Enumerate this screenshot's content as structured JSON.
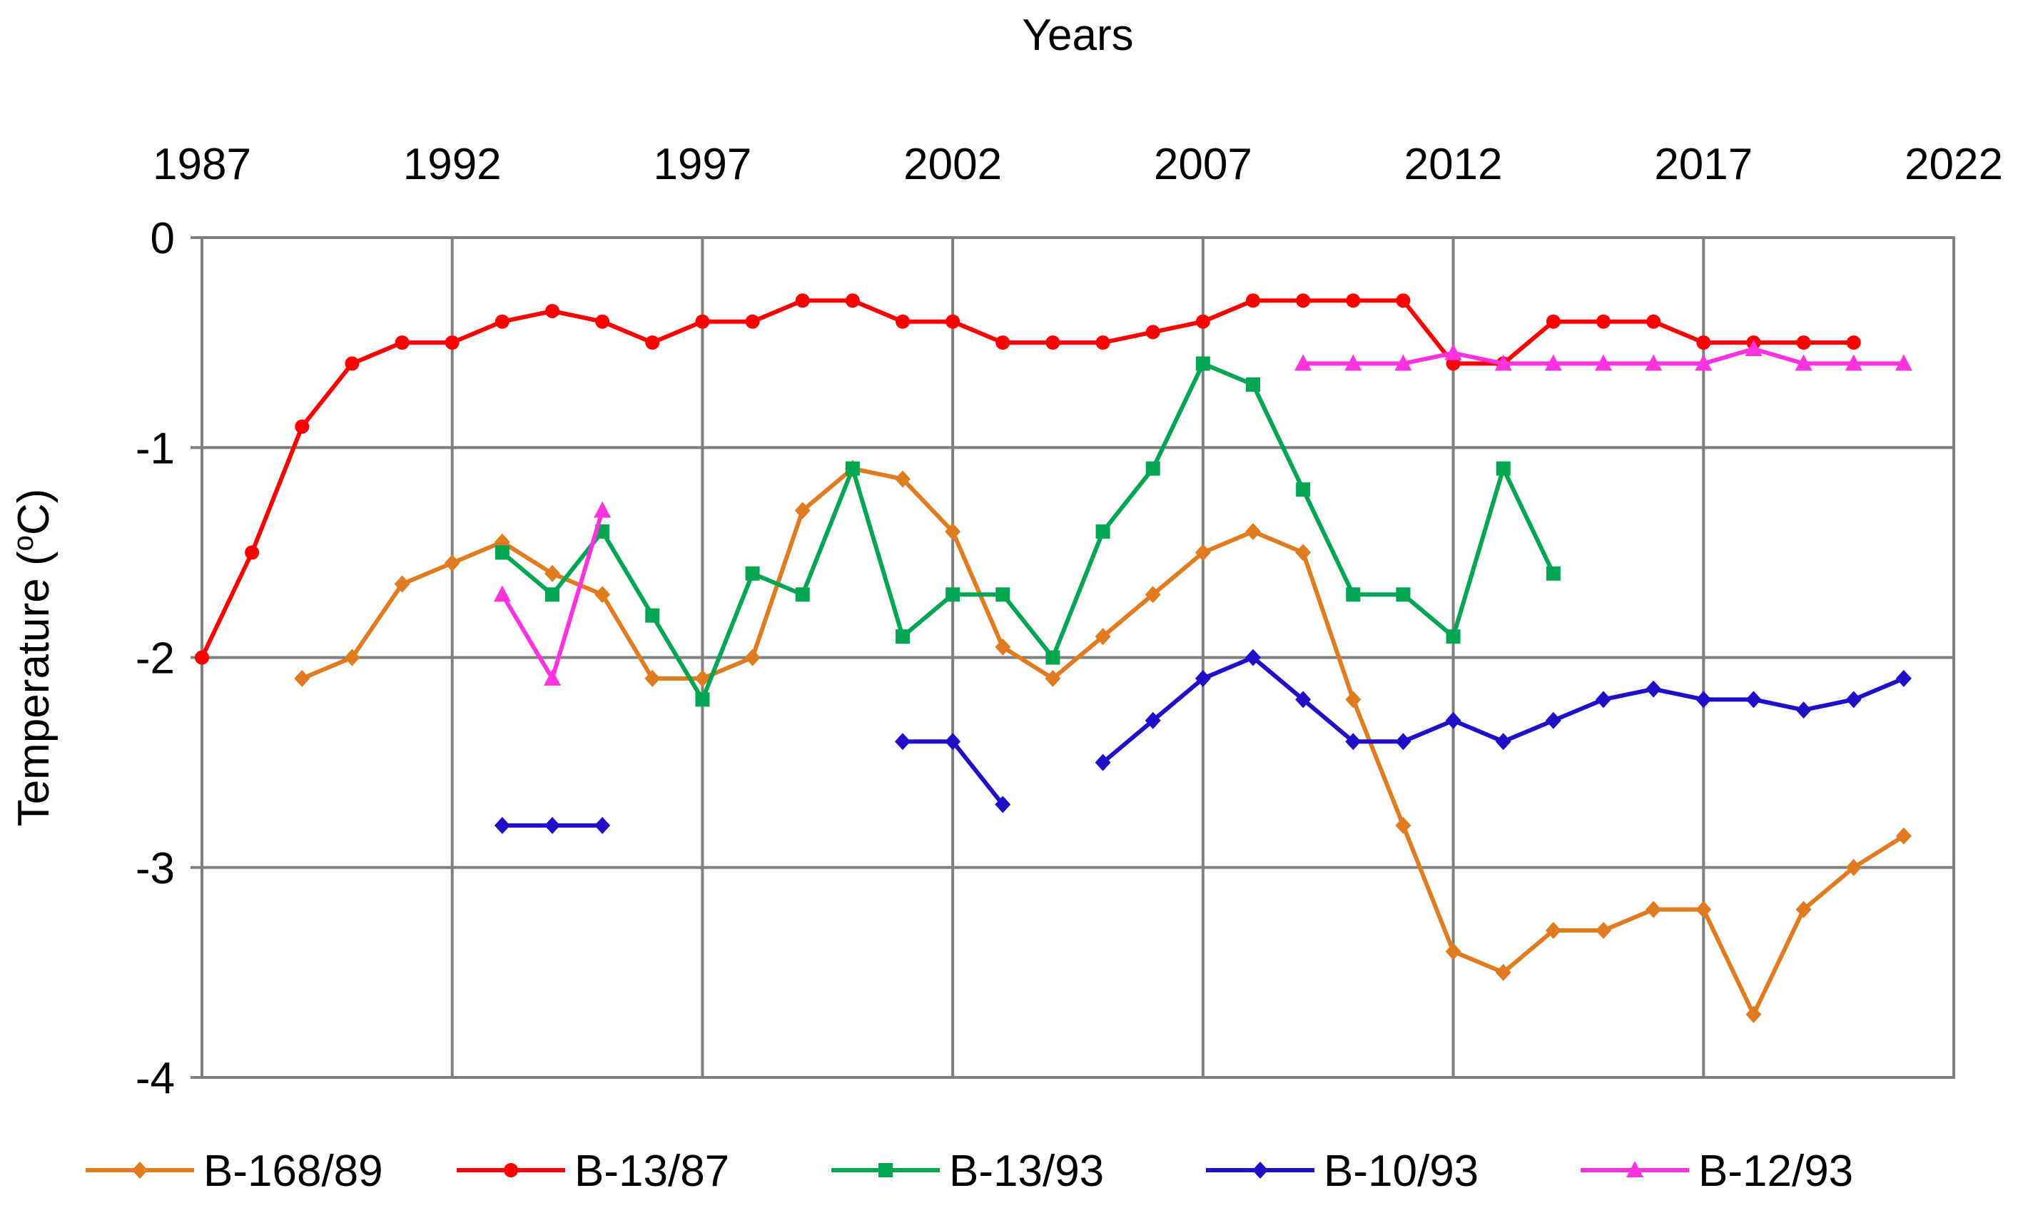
{
  "chart_data": {
    "type": "line",
    "title": "",
    "xlabel": "Years",
    "ylabel": "Temperature (",
    "ylabel_sup": "o",
    "ylabel_suffix": "C)",
    "xlim": [
      1987,
      2022
    ],
    "ylim": [
      -4,
      0
    ],
    "x_axis_position": "top",
    "grid": true,
    "legend_position": "bottom",
    "x_ticks": [
      "1987",
      "1992",
      "1997",
      "2002",
      "2007",
      "2012",
      "2017",
      "2022"
    ],
    "y_ticks": [
      "0",
      "-1",
      "-2",
      "-3",
      "-4"
    ],
    "series": [
      {
        "name": "B-168/89",
        "color": "#E07B1F",
        "marker": "diamond",
        "points": [
          [
            1989,
            -2.1
          ],
          [
            1990,
            -2.0
          ],
          [
            1991,
            -1.65
          ],
          [
            1992,
            -1.55
          ],
          [
            1993,
            -1.45
          ],
          [
            1994,
            -1.6
          ],
          [
            1995,
            -1.7
          ],
          [
            1996,
            -2.1
          ],
          [
            1997,
            -2.1
          ],
          [
            1998,
            -2.0
          ],
          [
            1999,
            -1.3
          ],
          [
            2000,
            -1.1
          ],
          [
            2001,
            -1.15
          ],
          [
            2002,
            -1.4
          ],
          [
            2003,
            -1.95
          ],
          [
            2004,
            -2.1
          ],
          [
            2005,
            -1.9
          ],
          [
            2006,
            -1.7
          ],
          [
            2007,
            -1.5
          ],
          [
            2008,
            -1.4
          ],
          [
            2009,
            -1.5
          ],
          [
            2010,
            -2.2
          ],
          [
            2011,
            -2.8
          ],
          [
            2012,
            -3.4
          ],
          [
            2013,
            -3.5
          ],
          [
            2014,
            -3.3
          ],
          [
            2015,
            -3.3
          ],
          [
            2016,
            -3.2
          ],
          [
            2017,
            -3.2
          ],
          [
            2018,
            -3.7
          ],
          [
            2019,
            -3.2
          ],
          [
            2020,
            -3.0
          ],
          [
            2021,
            -2.85
          ]
        ]
      },
      {
        "name": "B-13/87",
        "color": "#FF0000",
        "marker": "circle",
        "points": [
          [
            1987,
            -2.0
          ],
          [
            1988,
            -1.5
          ],
          [
            1989,
            -0.9
          ],
          [
            1990,
            -0.6
          ],
          [
            1991,
            -0.5
          ],
          [
            1992,
            -0.5
          ],
          [
            1993,
            -0.4
          ],
          [
            1994,
            -0.35
          ],
          [
            1995,
            -0.4
          ],
          [
            1996,
            -0.5
          ],
          [
            1997,
            -0.4
          ],
          [
            1998,
            -0.4
          ],
          [
            1999,
            -0.3
          ],
          [
            2000,
            -0.3
          ],
          [
            2001,
            -0.4
          ],
          [
            2002,
            -0.4
          ],
          [
            2003,
            -0.5
          ],
          [
            2004,
            -0.5
          ],
          [
            2005,
            -0.5
          ],
          [
            2006,
            -0.45
          ],
          [
            2007,
            -0.4
          ],
          [
            2008,
            -0.3
          ],
          [
            2009,
            -0.3
          ],
          [
            2010,
            -0.3
          ],
          [
            2011,
            -0.3
          ],
          [
            2012,
            -0.6
          ],
          [
            2013,
            -0.6
          ],
          [
            2014,
            -0.4
          ],
          [
            2015,
            -0.4
          ],
          [
            2016,
            -0.4
          ],
          [
            2017,
            -0.5
          ],
          [
            2018,
            -0.5
          ],
          [
            2019,
            -0.5
          ],
          [
            2020,
            -0.5
          ]
        ]
      },
      {
        "name": "B-13/93",
        "color": "#00A651",
        "marker": "square",
        "points": [
          [
            1993,
            -1.5
          ],
          [
            1994,
            -1.7
          ],
          [
            1995,
            -1.4
          ],
          [
            1996,
            -1.8
          ],
          [
            1997,
            -2.2
          ],
          [
            1998,
            -1.6
          ],
          [
            1999,
            -1.7
          ],
          [
            2000,
            -1.1
          ],
          [
            2001,
            -1.9
          ],
          [
            2002,
            -1.7
          ],
          [
            2003,
            -1.7
          ],
          [
            2004,
            -2.0
          ],
          [
            2005,
            -1.4
          ],
          [
            2006,
            -1.1
          ],
          [
            2007,
            -0.6
          ],
          [
            2008,
            -0.7
          ],
          [
            2009,
            -1.2
          ],
          [
            2010,
            -1.7
          ],
          [
            2011,
            -1.7
          ],
          [
            2012,
            -1.9
          ],
          [
            2013,
            -1.1
          ],
          [
            2014,
            -1.6
          ]
        ]
      },
      {
        "name": "B-10/93",
        "color": "#1F10C8",
        "marker": "diamond",
        "segments": [
          [
            [
              1993,
              -2.8
            ],
            [
              1994,
              -2.8
            ],
            [
              1995,
              -2.8
            ]
          ],
          [
            [
              2001,
              -2.4
            ],
            [
              2002,
              -2.4
            ],
            [
              2003,
              -2.7
            ]
          ],
          [
            [
              2005,
              -2.5
            ],
            [
              2006,
              -2.3
            ],
            [
              2007,
              -2.1
            ],
            [
              2008,
              -2.0
            ],
            [
              2009,
              -2.2
            ],
            [
              2010,
              -2.4
            ],
            [
              2011,
              -2.4
            ],
            [
              2012,
              -2.3
            ],
            [
              2013,
              -2.4
            ],
            [
              2014,
              -2.3
            ],
            [
              2015,
              -2.2
            ],
            [
              2016,
              -2.15
            ],
            [
              2017,
              -2.2
            ],
            [
              2018,
              -2.2
            ],
            [
              2019,
              -2.25
            ],
            [
              2020,
              -2.2
            ],
            [
              2021,
              -2.1
            ]
          ]
        ]
      },
      {
        "name": "B-12/93",
        "color": "#FF33DD",
        "marker": "triangle",
        "segments": [
          [
            [
              1993,
              -1.7
            ],
            [
              1994,
              -2.1
            ],
            [
              1995,
              -1.3
            ]
          ],
          [
            [
              2009,
              -0.6
            ],
            [
              2010,
              -0.6
            ],
            [
              2011,
              -0.6
            ],
            [
              2012,
              -0.55
            ],
            [
              2013,
              -0.6
            ],
            [
              2014,
              -0.6
            ],
            [
              2015,
              -0.6
            ],
            [
              2016,
              -0.6
            ],
            [
              2017,
              -0.6
            ],
            [
              2018,
              -0.53
            ],
            [
              2019,
              -0.6
            ],
            [
              2020,
              -0.6
            ],
            [
              2021,
              -0.6
            ]
          ]
        ]
      }
    ]
  }
}
